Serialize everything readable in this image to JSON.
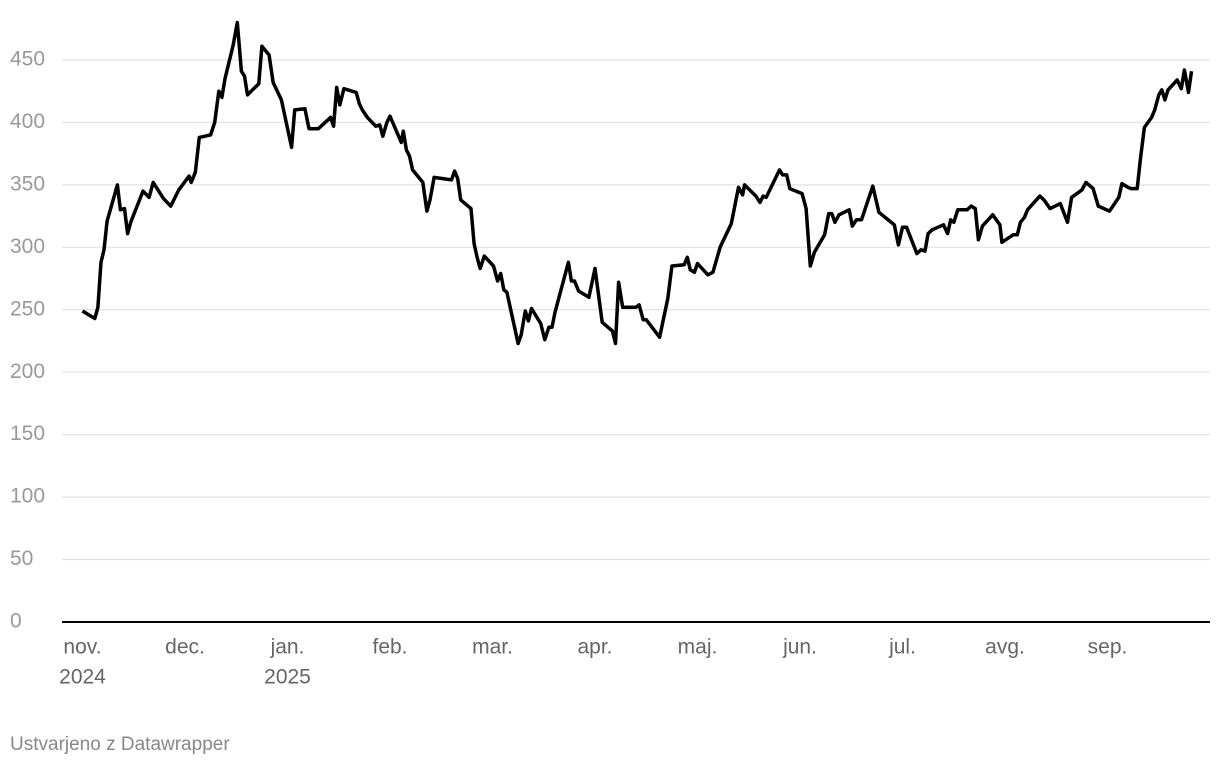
{
  "chart_data": {
    "type": "line",
    "x": [
      0,
      0.12,
      0.15,
      0.18,
      0.21,
      0.24,
      0.34,
      0.37,
      0.41,
      0.44,
      0.47,
      0.59,
      0.65,
      0.69,
      0.79,
      0.86,
      0.94,
      1.04,
      1.06,
      1.1,
      1.14,
      1.25,
      1.29,
      1.33,
      1.36,
      1.39,
      1.47,
      1.51,
      1.55,
      1.58,
      1.61,
      1.72,
      1.75,
      1.82,
      1.86,
      1.94,
      2.04,
      2.07,
      2.17,
      2.21,
      2.3,
      2.42,
      2.45,
      2.48,
      2.51,
      2.55,
      2.67,
      2.7,
      2.73,
      2.78,
      2.86,
      2.9,
      2.93,
      2.97,
      3.0,
      3.11,
      3.13,
      3.16,
      3.19,
      3.22,
      3.32,
      3.36,
      3.39,
      3.43,
      3.6,
      3.63,
      3.66,
      3.69,
      3.79,
      3.82,
      3.85,
      3.88,
      3.92,
      4.01,
      4.05,
      4.08,
      4.11,
      4.14,
      4.25,
      4.28,
      4.32,
      4.35,
      4.38,
      4.47,
      4.51,
      4.55,
      4.58,
      4.61,
      4.74,
      4.77,
      4.8,
      4.84,
      4.94,
      5.0,
      5.07,
      5.17,
      5.2,
      5.23,
      5.27,
      5.4,
      5.43,
      5.47,
      5.5,
      5.63,
      5.71,
      5.75,
      5.87,
      5.9,
      5.93,
      5.97,
      6.0,
      6.1,
      6.15,
      6.22,
      6.33,
      6.4,
      6.44,
      6.46,
      6.57,
      6.61,
      6.64,
      6.67,
      6.8,
      6.83,
      6.87,
      6.9,
      7.02,
      7.06,
      7.1,
      7.14,
      7.24,
      7.28,
      7.31,
      7.34,
      7.38,
      7.48,
      7.51,
      7.55,
      7.6,
      7.71,
      7.77,
      7.92,
      7.96,
      8.0,
      8.04,
      8.14,
      8.18,
      8.22,
      8.25,
      8.29,
      8.4,
      8.44,
      8.47,
      8.5,
      8.54,
      8.63,
      8.67,
      8.71,
      8.74,
      8.78,
      8.88,
      8.95,
      8.97,
      9.08,
      9.12,
      9.15,
      9.19,
      9.22,
      9.34,
      9.38,
      9.44,
      9.54,
      9.61,
      9.65,
      9.75,
      9.79,
      9.86,
      9.91,
      10.02,
      10.11,
      10.14,
      10.2,
      10.23,
      10.29,
      10.32,
      10.36,
      10.43,
      10.46,
      10.5,
      10.53,
      10.56,
      10.59,
      10.68,
      10.72,
      10.75,
      10.79,
      10.82
    ],
    "values": [
      249,
      243,
      252,
      288,
      298,
      321,
      350,
      330,
      331,
      311,
      320,
      345,
      340,
      352,
      339,
      333,
      346,
      357,
      352,
      360,
      388,
      390,
      400,
      425,
      420,
      435,
      462,
      480,
      441,
      437,
      422,
      431,
      461,
      454,
      432,
      418,
      380,
      410,
      411,
      395,
      395,
      404,
      397,
      428,
      414,
      427,
      424,
      415,
      410,
      404,
      397,
      398,
      389,
      400,
      405,
      384,
      393,
      378,
      373,
      362,
      352,
      329,
      338,
      356,
      354,
      361,
      355,
      338,
      331,
      303,
      292,
      283,
      293,
      285,
      273,
      279,
      266,
      264,
      223,
      230,
      249,
      241,
      251,
      239,
      226,
      236,
      236,
      248,
      288,
      273,
      273,
      265,
      260,
      283,
      240,
      233,
      223,
      272,
      252,
      252,
      254,
      242,
      242,
      228,
      259,
      285,
      286,
      292,
      282,
      280,
      287,
      278,
      280,
      300,
      319,
      348,
      342,
      350,
      341,
      336,
      341,
      340,
      362,
      358,
      358,
      347,
      343,
      331,
      285,
      296,
      310,
      327,
      327,
      320,
      326,
      330,
      317,
      322,
      322,
      349,
      328,
      318,
      302,
      316,
      316,
      295,
      298,
      297,
      311,
      314,
      318,
      311,
      322,
      320,
      330,
      330,
      333,
      331,
      306,
      317,
      326,
      318,
      304,
      310,
      310,
      320,
      324,
      330,
      341,
      338,
      331,
      335,
      320,
      340,
      346,
      352,
      347,
      333,
      329,
      340,
      351,
      348,
      347,
      347,
      370,
      396,
      404,
      410,
      422,
      426,
      418,
      426,
      434,
      427,
      442,
      424,
      441
    ],
    "color": "#000000",
    "xlim": [
      -0.2,
      11.0
    ],
    "xticks": [
      {
        "value": 0,
        "label": "nov."
      },
      {
        "value": 1,
        "label": "dec."
      },
      {
        "value": 2,
        "label": "jan."
      },
      {
        "value": 3,
        "label": "feb."
      },
      {
        "value": 4,
        "label": "mar."
      },
      {
        "value": 5,
        "label": "apr."
      },
      {
        "value": 6,
        "label": "maj."
      },
      {
        "value": 7,
        "label": "jun."
      },
      {
        "value": 8,
        "label": "jul."
      },
      {
        "value": 9,
        "label": "avg."
      },
      {
        "value": 10,
        "label": "sep."
      }
    ],
    "year_labels": [
      {
        "value": 0,
        "label": "2024"
      },
      {
        "value": 2,
        "label": "2025"
      }
    ],
    "ylim": [
      0,
      480
    ],
    "yticks": [
      0,
      50,
      100,
      150,
      200,
      250,
      300,
      350,
      400,
      450
    ],
    "grid": true,
    "footer": "Ustvarjeno z Datawrapper"
  }
}
